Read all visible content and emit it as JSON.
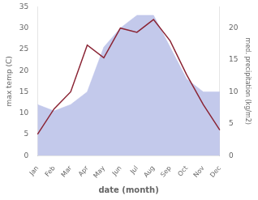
{
  "chart_data": {
    "type": "line",
    "categories": [
      "Jan",
      "Feb",
      "Mar",
      "Apr",
      "May",
      "Jun",
      "Jul",
      "Aug",
      "Sep",
      "Oct",
      "Nov",
      "Dec"
    ],
    "series": [
      {
        "type": "line",
        "color": "#8b2535",
        "values": [
          5.0,
          11.0,
          15.0,
          26.0,
          23.0,
          30.0,
          29.0,
          32.0,
          27.0,
          19.0,
          12.0,
          6.0
        ]
      },
      {
        "type": "area",
        "color": "#b8bfe8",
        "axis": "y2",
        "values": [
          8,
          7,
          8,
          10,
          17,
          20,
          22,
          22,
          17,
          12,
          10,
          10
        ]
      }
    ],
    "xlabel": "date (month)",
    "ylabel": "max temp (C)",
    "y2label": "med. precipitation (kg/m2)",
    "ylim": [
      0,
      35
    ],
    "yticks": [
      0,
      5,
      10,
      15,
      20,
      25,
      30,
      35
    ],
    "y2lim": [
      0,
      23.33
    ],
    "y2ticks": [
      0,
      5,
      10,
      15,
      20
    ],
    "grid": false
  }
}
